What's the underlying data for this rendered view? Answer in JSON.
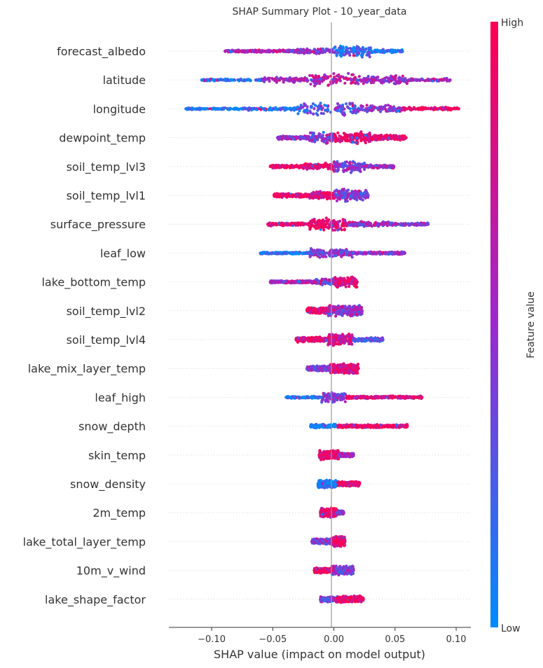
{
  "chart_data": {
    "type": "scatter",
    "title": "SHAP Summary Plot - 10_year_data",
    "xlabel": "SHAP value (impact on model output)",
    "ylabel": "",
    "xlim": [
      -0.135,
      0.112
    ],
    "xticks": [
      -0.1,
      -0.05,
      0.0,
      0.05,
      0.1
    ],
    "xtick_labels": [
      "−0.10",
      "−0.05",
      "0.00",
      "0.05",
      "0.10"
    ],
    "grid": false,
    "colorbar": {
      "label": "Feature value",
      "high_label": "High",
      "low_label": "Low",
      "high_color": "#ff0052",
      "mid_color": "#9b29cf",
      "low_color": "#008bfb"
    },
    "features": [
      {
        "name": "forecast_albedo",
        "min": -0.089,
        "max": 0.056,
        "segments": [
          {
            "from": -0.089,
            "to": -0.03,
            "w": 4,
            "c": 0.6
          },
          {
            "from": -0.03,
            "to": 0.0,
            "w": 8,
            "c": 0.5
          },
          {
            "from": 0.0,
            "to": 0.03,
            "w": 18,
            "c": 0.15
          },
          {
            "from": 0.03,
            "to": 0.056,
            "w": 5,
            "c": 0.1
          }
        ]
      },
      {
        "name": "latitude",
        "min": -0.108,
        "max": 0.095,
        "segments": [
          {
            "from": -0.108,
            "to": -0.06,
            "w": 3,
            "c": 0.05
          },
          {
            "from": -0.06,
            "to": -0.02,
            "w": 8,
            "c": 0.55
          },
          {
            "from": -0.02,
            "to": 0.02,
            "w": 20,
            "c": 0.7
          },
          {
            "from": 0.02,
            "to": 0.06,
            "w": 14,
            "c": 0.55
          },
          {
            "from": 0.06,
            "to": 0.095,
            "w": 5,
            "c": 0.55
          }
        ]
      },
      {
        "name": "longitude",
        "min": -0.121,
        "max": 0.102,
        "segments": [
          {
            "from": -0.121,
            "to": -0.07,
            "w": 3,
            "c": 0.05
          },
          {
            "from": -0.07,
            "to": -0.03,
            "w": 5,
            "c": 0.1
          },
          {
            "from": -0.03,
            "to": 0.02,
            "w": 20,
            "c": 0.3
          },
          {
            "from": 0.02,
            "to": 0.055,
            "w": 12,
            "c": 0.45
          },
          {
            "from": 0.055,
            "to": 0.102,
            "w": 5,
            "c": 0.95
          }
        ]
      },
      {
        "name": "dewpoint_temp",
        "min": -0.046,
        "max": 0.059,
        "segments": [
          {
            "from": -0.046,
            "to": -0.02,
            "w": 6,
            "c": 0.5
          },
          {
            "from": -0.02,
            "to": 0.0,
            "w": 18,
            "c": 0.45
          },
          {
            "from": 0.0,
            "to": 0.03,
            "w": 18,
            "c": 0.95
          },
          {
            "from": 0.03,
            "to": 0.059,
            "w": 8,
            "c": 0.95
          }
        ]
      },
      {
        "name": "soil_temp_lvl3",
        "min": -0.052,
        "max": 0.049,
        "segments": [
          {
            "from": -0.052,
            "to": -0.025,
            "w": 5,
            "c": 0.95
          },
          {
            "from": -0.025,
            "to": 0.0,
            "w": 10,
            "c": 0.9
          },
          {
            "from": 0.0,
            "to": 0.025,
            "w": 18,
            "c": 0.45
          },
          {
            "from": 0.025,
            "to": 0.049,
            "w": 5,
            "c": 0.55
          }
        ]
      },
      {
        "name": "soil_temp_lvl1",
        "min": -0.049,
        "max": 0.028,
        "segments": [
          {
            "from": -0.049,
            "to": -0.02,
            "w": 6,
            "c": 0.95
          },
          {
            "from": -0.02,
            "to": 0.0,
            "w": 12,
            "c": 0.85
          },
          {
            "from": 0.0,
            "to": 0.028,
            "w": 18,
            "c": 0.4
          }
        ]
      },
      {
        "name": "surface_pressure",
        "min": -0.054,
        "max": 0.077,
        "segments": [
          {
            "from": -0.054,
            "to": -0.02,
            "w": 5,
            "c": 0.9
          },
          {
            "from": -0.02,
            "to": 0.01,
            "w": 20,
            "c": 0.85
          },
          {
            "from": 0.01,
            "to": 0.045,
            "w": 8,
            "c": 0.55
          },
          {
            "from": 0.045,
            "to": 0.077,
            "w": 4,
            "c": 0.45
          }
        ]
      },
      {
        "name": "leaf_low",
        "min": -0.06,
        "max": 0.058,
        "segments": [
          {
            "from": -0.06,
            "to": -0.02,
            "w": 3,
            "c": 0.05
          },
          {
            "from": -0.02,
            "to": 0.015,
            "w": 14,
            "c": 0.45
          },
          {
            "from": 0.015,
            "to": 0.058,
            "w": 4,
            "c": 0.5
          }
        ]
      },
      {
        "name": "lake_bottom_temp",
        "min": -0.052,
        "max": 0.019,
        "segments": [
          {
            "from": -0.052,
            "to": -0.015,
            "w": 4,
            "c": 0.6
          },
          {
            "from": -0.015,
            "to": 0.0,
            "w": 10,
            "c": 0.4
          },
          {
            "from": 0.0,
            "to": 0.019,
            "w": 16,
            "c": 0.85
          }
        ]
      },
      {
        "name": "soil_temp_lvl2",
        "min": -0.022,
        "max": 0.023,
        "segments": [
          {
            "from": -0.022,
            "to": -0.005,
            "w": 10,
            "c": 0.95
          },
          {
            "from": -0.005,
            "to": 0.023,
            "w": 16,
            "c": 0.5
          }
        ]
      },
      {
        "name": "soil_temp_lvl4",
        "min": -0.031,
        "max": 0.04,
        "segments": [
          {
            "from": -0.031,
            "to": -0.005,
            "w": 8,
            "c": 0.9
          },
          {
            "from": -0.005,
            "to": 0.015,
            "w": 18,
            "c": 0.75
          },
          {
            "from": 0.015,
            "to": 0.04,
            "w": 6,
            "c": 0.35
          }
        ]
      },
      {
        "name": "lake_mix_layer_temp",
        "min": -0.022,
        "max": 0.02,
        "segments": [
          {
            "from": -0.022,
            "to": -0.003,
            "w": 8,
            "c": 0.4
          },
          {
            "from": -0.003,
            "to": 0.02,
            "w": 16,
            "c": 0.85
          }
        ]
      },
      {
        "name": "leaf_high",
        "min": -0.039,
        "max": 0.072,
        "segments": [
          {
            "from": -0.039,
            "to": -0.01,
            "w": 3,
            "c": 0.05
          },
          {
            "from": -0.01,
            "to": 0.01,
            "w": 16,
            "c": 0.45
          },
          {
            "from": 0.01,
            "to": 0.072,
            "w": 4,
            "c": 0.9
          }
        ]
      },
      {
        "name": "snow_depth",
        "min": -0.019,
        "max": 0.06,
        "segments": [
          {
            "from": -0.019,
            "to": 0.002,
            "w": 6,
            "c": 0.05
          },
          {
            "from": 0.002,
            "to": 0.06,
            "w": 5,
            "c": 0.95
          }
        ]
      },
      {
        "name": "skin_temp",
        "min": -0.012,
        "max": 0.016,
        "segments": [
          {
            "from": -0.012,
            "to": 0.004,
            "w": 14,
            "c": 0.95
          },
          {
            "from": 0.004,
            "to": 0.016,
            "w": 6,
            "c": 0.55
          }
        ]
      },
      {
        "name": "snow_density",
        "min": -0.013,
        "max": 0.021,
        "segments": [
          {
            "from": -0.013,
            "to": 0.002,
            "w": 12,
            "c": 0.05
          },
          {
            "from": 0.002,
            "to": 0.021,
            "w": 7,
            "c": 0.95
          }
        ]
      },
      {
        "name": "2m_temp",
        "min": -0.011,
        "max": 0.008,
        "segments": [
          {
            "from": -0.011,
            "to": 0.002,
            "w": 14,
            "c": 0.9
          },
          {
            "from": 0.002,
            "to": 0.008,
            "w": 6,
            "c": 0.45
          }
        ]
      },
      {
        "name": "lake_total_layer_temp",
        "min": -0.018,
        "max": 0.009,
        "segments": [
          {
            "from": -0.018,
            "to": -0.002,
            "w": 8,
            "c": 0.45
          },
          {
            "from": -0.002,
            "to": 0.009,
            "w": 16,
            "c": 0.9
          }
        ]
      },
      {
        "name": "10m_v_wind",
        "min": -0.016,
        "max": 0.016,
        "segments": [
          {
            "from": -0.016,
            "to": -0.002,
            "w": 8,
            "c": 0.95
          },
          {
            "from": -0.002,
            "to": 0.016,
            "w": 14,
            "c": 0.45
          }
        ]
      },
      {
        "name": "lake_shape_factor",
        "min": -0.011,
        "max": 0.024,
        "segments": [
          {
            "from": -0.011,
            "to": 0.001,
            "w": 8,
            "c": 0.4
          },
          {
            "from": 0.001,
            "to": 0.024,
            "w": 10,
            "c": 0.95
          }
        ]
      }
    ]
  }
}
